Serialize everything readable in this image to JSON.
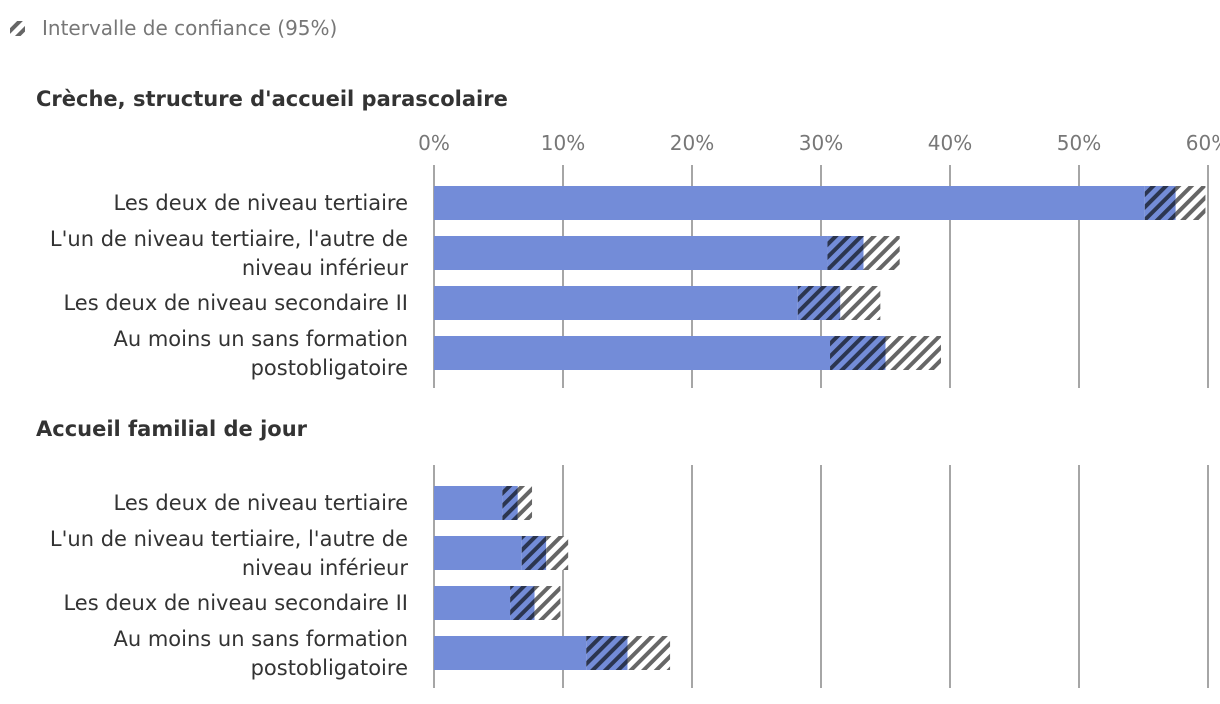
{
  "legend": {
    "label": "Intervalle de confiance (95%)",
    "icon": "hatched-square-icon"
  },
  "colors": {
    "bar": "#738cd8",
    "ci_dark": "#2b3550",
    "ci_light": "#666666",
    "grid": "#888888",
    "tick_text": "#777777",
    "label_text": "#333333"
  },
  "chart_data": [
    {
      "type": "bar",
      "orientation": "horizontal",
      "title": "Crèche, structure d'accueil parascolaire",
      "xlim": [
        0,
        60
      ],
      "xticks": [
        "0%",
        "10%",
        "20%",
        "30%",
        "40%",
        "50%",
        "60%"
      ],
      "xtick_values": [
        0,
        10,
        20,
        30,
        40,
        50,
        60
      ],
      "categories": [
        [
          "Les deux de niveau tertiaire"
        ],
        [
          "L'un de niveau tertiaire, l'autre de",
          "niveau inférieur"
        ],
        [
          "Les deux de niveau secondaire II"
        ],
        [
          "Au moins un sans formation",
          "postobligatoire"
        ]
      ],
      "values": [
        57.5,
        33.3,
        31.5,
        35.0
      ],
      "ci_low": [
        55.1,
        30.5,
        28.2,
        30.7
      ],
      "ci_high": [
        59.8,
        36.1,
        34.6,
        39.3
      ]
    },
    {
      "type": "bar",
      "orientation": "horizontal",
      "title": "Accueil familial de jour",
      "xlim": [
        0,
        60
      ],
      "xtick_values": [
        0,
        10,
        20,
        30,
        40,
        50,
        60
      ],
      "categories": [
        [
          "Les deux de niveau tertiaire"
        ],
        [
          "L'un de niveau tertiaire, l'autre de",
          "niveau inférieur"
        ],
        [
          "Les deux de niveau secondaire II"
        ],
        [
          "Au moins un sans formation",
          "postobligatoire"
        ]
      ],
      "values": [
        6.5,
        8.7,
        7.8,
        15.0
      ],
      "ci_low": [
        5.3,
        6.8,
        5.9,
        11.8
      ],
      "ci_high": [
        7.6,
        10.4,
        9.8,
        18.3
      ]
    }
  ]
}
